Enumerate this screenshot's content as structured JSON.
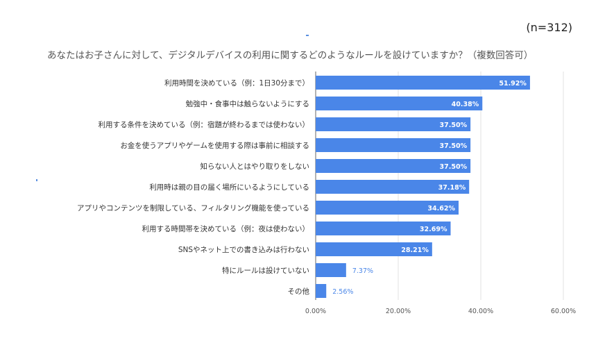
{
  "header": {
    "sample_size": "(n=312)",
    "title": "あなたはお子さんに対して、デジタルデバイスの利用に関するどのようなルールを設けていますか？（複数回答可）"
  },
  "colors": {
    "bar": "#4a86e8",
    "grid": "#e0e0e0",
    "label_inside": "#ffffff",
    "label_outside": "#4a86e8"
  },
  "chart_data": {
    "type": "bar",
    "orientation": "horizontal",
    "title": "あなたはお子さんに対して、デジタルデバイスの利用に関するどのようなルールを設けていますか？（複数回答可）",
    "categories": [
      "利用時間を決めている（例：1日30分まで）",
      "勉強中・食事中は触らないようにする",
      "利用する条件を決めている（例：宿題が終わるまでは使わない）",
      "お金を使うアプリやゲームを使用する際は事前に相談する",
      "知らない人とはやり取りをしない",
      "利用時は親の目の届く場所にいるようにしている",
      "アプリやコンテンツを制限している、フィルタリング機能を使っている",
      "利用する時間帯を決めている（例：夜は使わない）",
      "SNSやネット上での書き込みは行わない",
      "特にルールは設けていない",
      "その他"
    ],
    "values": [
      51.92,
      40.38,
      37.5,
      37.5,
      37.5,
      37.18,
      34.62,
      32.69,
      28.21,
      7.37,
      2.56
    ],
    "data_labels": [
      "51.92%",
      "40.38%",
      "37.50%",
      "37.50%",
      "37.50%",
      "37.18%",
      "34.62%",
      "32.69%",
      "28.21%",
      "7.37%",
      "2.56%"
    ],
    "x_ticks": [
      0,
      20,
      40,
      60
    ],
    "x_tick_labels": [
      "0.00%",
      "20.00%",
      "40.00%",
      "60.00%"
    ],
    "xlim": [
      0,
      60
    ],
    "grid": true,
    "legend": "none"
  }
}
